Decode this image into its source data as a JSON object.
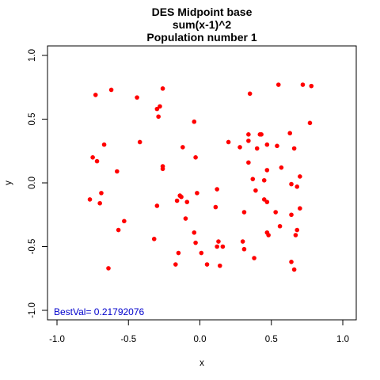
{
  "chart_data": {
    "type": "scatter",
    "title": [
      "DES Midpoint base",
      "sum(x-1)^2",
      "Population number 1"
    ],
    "xlabel": "x",
    "ylabel": "y",
    "xlim": [
      -1.0,
      1.0
    ],
    "ylim": [
      -1.0,
      1.0
    ],
    "xticks": [
      "-1.0",
      "-0.5",
      "0.0",
      "0.5",
      "1.0"
    ],
    "yticks": [
      "-1.0",
      "-0.5",
      "0.0",
      "0.5",
      "1.0"
    ],
    "grid": false,
    "point_color": "#ff0000",
    "annotation": {
      "text": "BestVal= 0.21792076",
      "color": "#0000cc"
    },
    "points": [
      [
        -0.73,
        0.69
      ],
      [
        -0.62,
        0.73
      ],
      [
        -0.44,
        0.67
      ],
      [
        -0.26,
        0.74
      ],
      [
        -0.3,
        0.58
      ],
      [
        -0.28,
        0.6
      ],
      [
        -0.29,
        0.52
      ],
      [
        -0.04,
        0.48
      ],
      [
        -0.42,
        0.32
      ],
      [
        -0.67,
        0.3
      ],
      [
        -0.75,
        0.2
      ],
      [
        -0.72,
        0.17
      ],
      [
        -0.58,
        0.09
      ],
      [
        -0.12,
        0.28
      ],
      [
        -0.26,
        0.13
      ],
      [
        -0.26,
        0.11
      ],
      [
        -0.03,
        0.2
      ],
      [
        -0.69,
        -0.08
      ],
      [
        -0.77,
        -0.13
      ],
      [
        -0.7,
        -0.16
      ],
      [
        -0.53,
        -0.3
      ],
      [
        -0.57,
        -0.37
      ],
      [
        -0.3,
        -0.18
      ],
      [
        -0.14,
        -0.1
      ],
      [
        -0.13,
        -0.11
      ],
      [
        -0.09,
        -0.15
      ],
      [
        -0.16,
        -0.14
      ],
      [
        -0.02,
        -0.08
      ],
      [
        -0.1,
        -0.28
      ],
      [
        -0.04,
        -0.39
      ],
      [
        -0.03,
        -0.47
      ],
      [
        -0.32,
        -0.44
      ],
      [
        -0.15,
        -0.55
      ],
      [
        -0.17,
        -0.64
      ],
      [
        -0.64,
        -0.67
      ],
      [
        0.01,
        -0.55
      ],
      [
        0.05,
        -0.64
      ],
      [
        0.13,
        -0.46
      ],
      [
        0.12,
        -0.5
      ],
      [
        0.16,
        -0.5
      ],
      [
        0.14,
        -0.65
      ],
      [
        0.11,
        -0.19
      ],
      [
        0.12,
        -0.05
      ],
      [
        0.3,
        -0.46
      ],
      [
        0.31,
        -0.52
      ],
      [
        0.38,
        -0.59
      ],
      [
        0.31,
        -0.23
      ],
      [
        0.39,
        -0.06
      ],
      [
        0.2,
        0.32
      ],
      [
        0.28,
        0.28
      ],
      [
        0.34,
        0.33
      ],
      [
        0.34,
        0.38
      ],
      [
        0.35,
        0.7
      ],
      [
        0.4,
        0.27
      ],
      [
        0.42,
        0.38
      ],
      [
        0.43,
        0.38
      ],
      [
        0.47,
        0.3
      ],
      [
        0.55,
        0.77
      ],
      [
        0.54,
        0.29
      ],
      [
        0.34,
        0.16
      ],
      [
        0.37,
        0.03
      ],
      [
        0.45,
        0.02
      ],
      [
        0.47,
        0.1
      ],
      [
        0.57,
        0.12
      ],
      [
        0.63,
        0.39
      ],
      [
        0.66,
        0.27
      ],
      [
        0.72,
        0.77
      ],
      [
        0.77,
        0.47
      ],
      [
        0.78,
        0.76
      ],
      [
        0.7,
        0.05
      ],
      [
        0.68,
        -0.03
      ],
      [
        0.64,
        -0.01
      ],
      [
        0.45,
        -0.13
      ],
      [
        0.47,
        -0.15
      ],
      [
        0.53,
        -0.23
      ],
      [
        0.56,
        -0.34
      ],
      [
        0.47,
        -0.39
      ],
      [
        0.48,
        -0.41
      ],
      [
        0.64,
        -0.25
      ],
      [
        0.7,
        -0.2
      ],
      [
        0.68,
        -0.37
      ],
      [
        0.67,
        -0.41
      ],
      [
        0.64,
        -0.62
      ],
      [
        0.66,
        -0.68
      ]
    ]
  }
}
